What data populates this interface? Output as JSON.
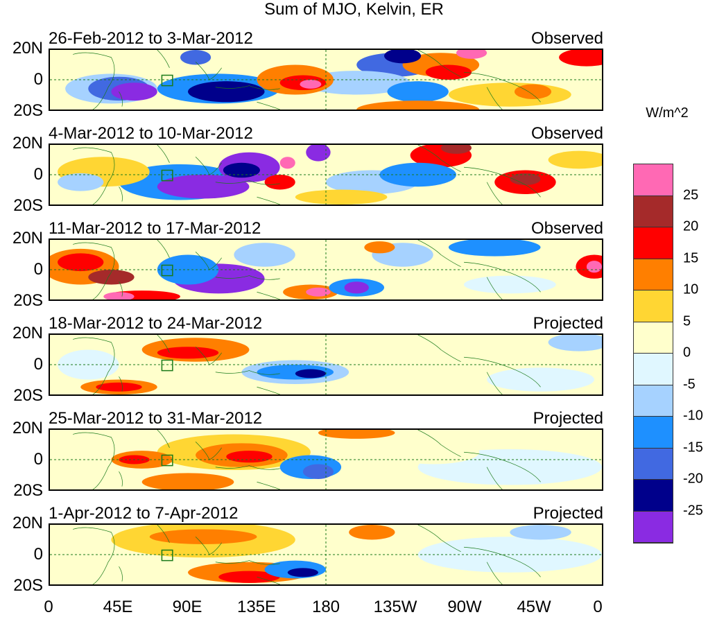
{
  "chart_data": {
    "type": "heatmap",
    "title": "Sum of MJO, Kelvin, ER",
    "units": "W/m^2",
    "x_tick_labels": [
      "0",
      "45E",
      "90E",
      "135E",
      "180",
      "135W",
      "90W",
      "45W",
      "0"
    ],
    "x_ticks_deg": [
      0,
      45,
      90,
      135,
      180,
      225,
      270,
      315,
      360
    ],
    "y_tick_labels": [
      "20N",
      "0",
      "20S"
    ],
    "ylim": [
      -20,
      20
    ],
    "panels": [
      {
        "period": "26-Feb-2012 to 3-Mar-2012",
        "status": "Observed"
      },
      {
        "period": "4-Mar-2012 to 10-Mar-2012",
        "status": "Observed"
      },
      {
        "period": "11-Mar-2012 to 17-Mar-2012",
        "status": "Observed"
      },
      {
        "period": "18-Mar-2012 to 24-Mar-2012",
        "status": "Projected"
      },
      {
        "period": "25-Mar-2012 to 31-Mar-2012",
        "status": "Projected"
      },
      {
        "period": "1-Apr-2012 to 7-Apr-2012",
        "status": "Projected"
      }
    ],
    "colorbar": {
      "levels": [
        "25",
        "20",
        "15",
        "10",
        "5",
        "0",
        "-5",
        "-10",
        "-15",
        "-20",
        "-25"
      ],
      "colors": [
        "#ff69b4",
        "#a52a2a",
        "#ff0000",
        "#ff7f00",
        "#ffd633",
        "#ffffcc",
        "#e0f7ff",
        "#a6d2ff",
        "#1e90ff",
        "#4169e1",
        "#00008b",
        "#8a2be2"
      ]
    }
  }
}
